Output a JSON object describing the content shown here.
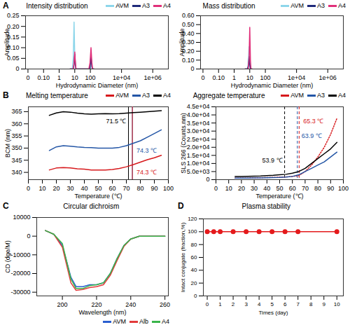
{
  "chart_data": [
    {
      "panel": "A",
      "title": "Intensity distribution",
      "type": "line",
      "xlabel": "Hydrodynamic Diameter (nm)",
      "ylabel": "Amplitude",
      "log": "x",
      "xlim": [
        0.007,
        10000000
      ],
      "xticks": [
        {
          "value": 0.01,
          "label": "0"
        },
        {
          "value": 0.1,
          "label": "0.10"
        },
        1,
        10,
        100,
        {
          "value": 10000,
          "label": "1e+04"
        },
        {
          "value": 1000000,
          "label": "1e+06"
        }
      ],
      "ylim": [
        0,
        0.25
      ],
      "yticks": [
        0,
        0.05,
        {
          "value": 0.1,
          "label": "0.10"
        },
        0.15,
        {
          "value": 0.2,
          "label": "0.20"
        },
        0.25
      ],
      "legend": "top-right",
      "x": [
        5,
        7,
        8,
        9,
        10,
        11,
        12,
        14,
        80,
        95,
        110,
        125,
        140,
        170
      ],
      "series": [
        {
          "name": "AVM",
          "color": "#8dd6ea",
          "values": [
            0,
            0,
            0.05,
            0.22,
            0.06,
            0,
            0,
            0,
            0,
            0,
            0,
            0,
            0,
            0
          ]
        },
        {
          "name": "A3",
          "color": "#1f2a7a",
          "values": [
            0,
            0,
            0,
            0.02,
            0.07,
            0.02,
            0,
            0,
            0,
            0,
            0.06,
            0.01,
            0,
            0
          ]
        },
        {
          "name": "A4",
          "color": "#e0307a",
          "values": [
            0,
            0,
            0,
            0.03,
            0.08,
            0.03,
            0,
            0,
            0,
            0.03,
            0.1,
            0.03,
            0,
            0
          ]
        }
      ]
    },
    {
      "title": "Mass distribution",
      "type": "line",
      "xlabel": "Hydrodynamic Diameter (nm)",
      "ylabel": "Amplitude",
      "log": "x",
      "xlim": [
        0.007,
        10000000
      ],
      "xticks": [
        {
          "value": 0.01,
          "label": "0"
        },
        {
          "value": 0.1,
          "label": "0.10"
        },
        1,
        10,
        100,
        {
          "value": 10000,
          "label": "1e+04"
        },
        {
          "value": 1000000,
          "label": "1e+06"
        }
      ],
      "ylim": [
        0,
        0.6
      ],
      "yticks": [
        0,
        {
          "value": 0.1,
          "label": "0.10"
        },
        {
          "value": 0.2,
          "label": "0.20"
        },
        {
          "value": 0.3,
          "label": "0.30"
        },
        {
          "value": 0.4,
          "label": "0.40"
        },
        {
          "value": 0.5,
          "label": "0.50"
        },
        {
          "value": 0.6,
          "label": "0.60"
        }
      ],
      "legend": "top-right",
      "x": [
        5,
        7,
        8,
        9,
        10,
        11,
        12,
        14
      ],
      "series": [
        {
          "name": "AVM",
          "color": "#8dd6ea",
          "values": [
            0,
            0,
            0.05,
            0.25,
            0.08,
            0,
            0,
            0
          ]
        },
        {
          "name": "A3",
          "color": "#1f2a7a",
          "values": [
            0,
            0,
            0.03,
            0.14,
            0.05,
            0,
            0,
            0
          ]
        },
        {
          "name": "A4",
          "color": "#e0307a",
          "values": [
            0,
            0,
            0,
            0.1,
            0.47,
            0.1,
            0,
            0
          ]
        }
      ]
    },
    {
      "panel": "B",
      "title": "Melting temperature",
      "type": "line",
      "xlabel": "Temperature (℃)",
      "ylabel": "BCM (nm)",
      "xlim": [
        0,
        100
      ],
      "xticks": [
        0,
        10,
        20,
        30,
        40,
        50,
        60,
        70,
        80,
        90,
        100
      ],
      "ylim": [
        337,
        367
      ],
      "yticks": [
        340,
        345,
        350,
        355,
        360,
        365
      ],
      "legend": "top-right",
      "x": [
        15,
        20,
        25,
        30,
        35,
        40,
        45,
        50,
        55,
        60,
        65,
        70,
        75,
        80,
        85,
        90,
        95
      ],
      "series": [
        {
          "name": "AVM",
          "color": "#d7191c",
          "values": [
            341,
            341.8,
            342,
            341.8,
            341.5,
            341.3,
            341,
            341,
            341,
            341.2,
            341.6,
            342.3,
            343.2,
            344.2,
            345.2,
            346,
            347
          ]
        },
        {
          "name": "A3",
          "color": "#2456a6",
          "values": [
            349,
            350.5,
            351,
            350.8,
            350.5,
            350.3,
            350.2,
            350,
            350,
            350,
            350.3,
            351,
            352,
            353,
            354.5,
            356,
            357.5
          ]
        },
        {
          "name": "A4",
          "color": "#000000",
          "values": [
            363.5,
            364.5,
            365,
            364.8,
            364.4,
            364.1,
            364,
            364.1,
            364.2,
            364.1,
            364.2,
            364.4,
            364.6,
            364.8,
            365,
            365.2,
            365.4
          ]
        }
      ],
      "annotations": [
        {
          "x": 71.5,
          "y": 361,
          "label": "71.5 ℃",
          "color": "#000000",
          "line_style": "solid"
        },
        {
          "x": 74.3,
          "y": 349,
          "label": "74.3 ℃",
          "color": "#2456a6",
          "line_style": "solid"
        },
        {
          "x": 74.3,
          "y": 340,
          "label": "74.3 ℃",
          "color": "#d7191c",
          "line_style": "solid"
        }
      ]
    },
    {
      "title": "Aggregate temperature",
      "type": "line",
      "xlabel": "Temperature (℃)",
      "ylabel": "SLS 266 (Counts.nm)",
      "xlim": [
        0,
        100
      ],
      "xticks": [
        0,
        10,
        20,
        30,
        40,
        50,
        60,
        70,
        80,
        90,
        100
      ],
      "ylim": [
        0,
        45000
      ],
      "yticks": [
        0,
        {
          "value": 5000,
          "label": "5.0e+03"
        },
        {
          "value": 10000,
          "label": "1.0e+04"
        },
        {
          "value": 15000,
          "label": "1.5e+04"
        },
        {
          "value": 20000,
          "label": "2.0e+04"
        },
        {
          "value": 25000,
          "label": "2.5e+04"
        },
        {
          "value": 30000,
          "label": "3.0e+04"
        },
        {
          "value": 35000,
          "label": "3.5e+04"
        },
        {
          "value": 40000,
          "label": "4.0e+04"
        },
        {
          "value": 45000,
          "label": "4.5e+04"
        }
      ],
      "legend": "top-right",
      "x": [
        15,
        20,
        25,
        30,
        35,
        40,
        45,
        50,
        55,
        60,
        65,
        70,
        75,
        80,
        85,
        90,
        95
      ],
      "series": [
        {
          "name": "AVM",
          "color": "#d7191c",
          "line_style": "dotted",
          "values": [
            1000,
            1000,
            1000,
            1100,
            1200,
            1300,
            1400,
            1500,
            1700,
            2000,
            2500,
            5000,
            9000,
            14000,
            20000,
            28000,
            38000
          ]
        },
        {
          "name": "A3",
          "color": "#2456a6",
          "values": [
            1000,
            1000,
            1000,
            1100,
            1100,
            1200,
            1300,
            1400,
            1600,
            2000,
            3000,
            5000,
            7000,
            9000,
            11000,
            14000,
            17000
          ]
        },
        {
          "name": "A4",
          "color": "#000000",
          "values": [
            2000,
            2000,
            2100,
            2200,
            2300,
            2500,
            2700,
            3000,
            3300,
            4000,
            5000,
            7000,
            10000,
            13000,
            16000,
            19000,
            23000
          ]
        }
      ],
      "annotations": [
        {
          "x": 53.9,
          "y": 12000,
          "label": "53.9 ℃",
          "color": "#000000",
          "line_style": "dashed"
        },
        {
          "x": 63.9,
          "y": 27000,
          "label": "63.9 ℃",
          "color": "#2456a6",
          "line_style": "dashed"
        },
        {
          "x": 65.3,
          "y": 36000,
          "label": "65.3 ℃",
          "color": "#d7191c",
          "line_style": "dashed"
        }
      ]
    },
    {
      "panel": "C",
      "title": "Circular dichroism",
      "type": "line",
      "xlabel": "Wavelength (nm)",
      "ylabel": "CD (dge/M)",
      "xlim": [
        185,
        262
      ],
      "xticks": [
        200,
        220,
        240,
        260
      ],
      "ylim": [
        -32000,
        10000
      ],
      "yticks": [
        -30000,
        -20000,
        -10000,
        0,
        10000
      ],
      "legend": "bottom-right",
      "x": [
        190,
        195,
        200,
        205,
        208,
        212,
        216,
        220,
        224,
        228,
        232,
        236,
        240,
        245,
        250,
        255,
        260
      ],
      "series": [
        {
          "name": "AVM",
          "color": "#2b5fcf",
          "values": [
            3000,
            1000,
            -5000,
            -22000,
            -27000,
            -27000,
            -26000,
            -26000,
            -25000,
            -20000,
            -12000,
            -5000,
            -1500,
            0,
            0,
            0,
            0
          ]
        },
        {
          "name": "Alb",
          "color": "#e23b3b",
          "values": [
            3000,
            1000,
            -6000,
            -25000,
            -29000,
            -28500,
            -27500,
            -27000,
            -26000,
            -21000,
            -13000,
            -5500,
            -1500,
            0,
            0,
            0,
            0
          ]
        },
        {
          "name": "A4",
          "color": "#3ab54a",
          "values": [
            3000,
            1000,
            -4000,
            -23000,
            -28000,
            -28000,
            -26500,
            -26000,
            -25000,
            -20000,
            -12000,
            -5000,
            -1500,
            0,
            0,
            0,
            0
          ]
        }
      ]
    },
    {
      "panel": "D",
      "title": "Plasma stability",
      "type": "line",
      "xlabel": "Times (day)",
      "ylabel": "Intact conjugate (fraction,%)",
      "xlim": [
        -0.3,
        10.5
      ],
      "xticks": [
        0,
        1,
        2,
        3,
        4,
        5,
        6,
        7,
        8,
        9,
        10
      ],
      "ylim": [
        0,
        120
      ],
      "yticks": [
        0,
        20,
        40,
        60,
        80,
        100,
        120
      ],
      "marker": "circle",
      "color": "#e41a1c",
      "x": [
        0,
        0.5,
        1,
        2,
        3,
        4,
        5,
        6,
        7,
        10
      ],
      "values": [
        100,
        100,
        100,
        100,
        100,
        100,
        100,
        100,
        100,
        100
      ]
    }
  ]
}
